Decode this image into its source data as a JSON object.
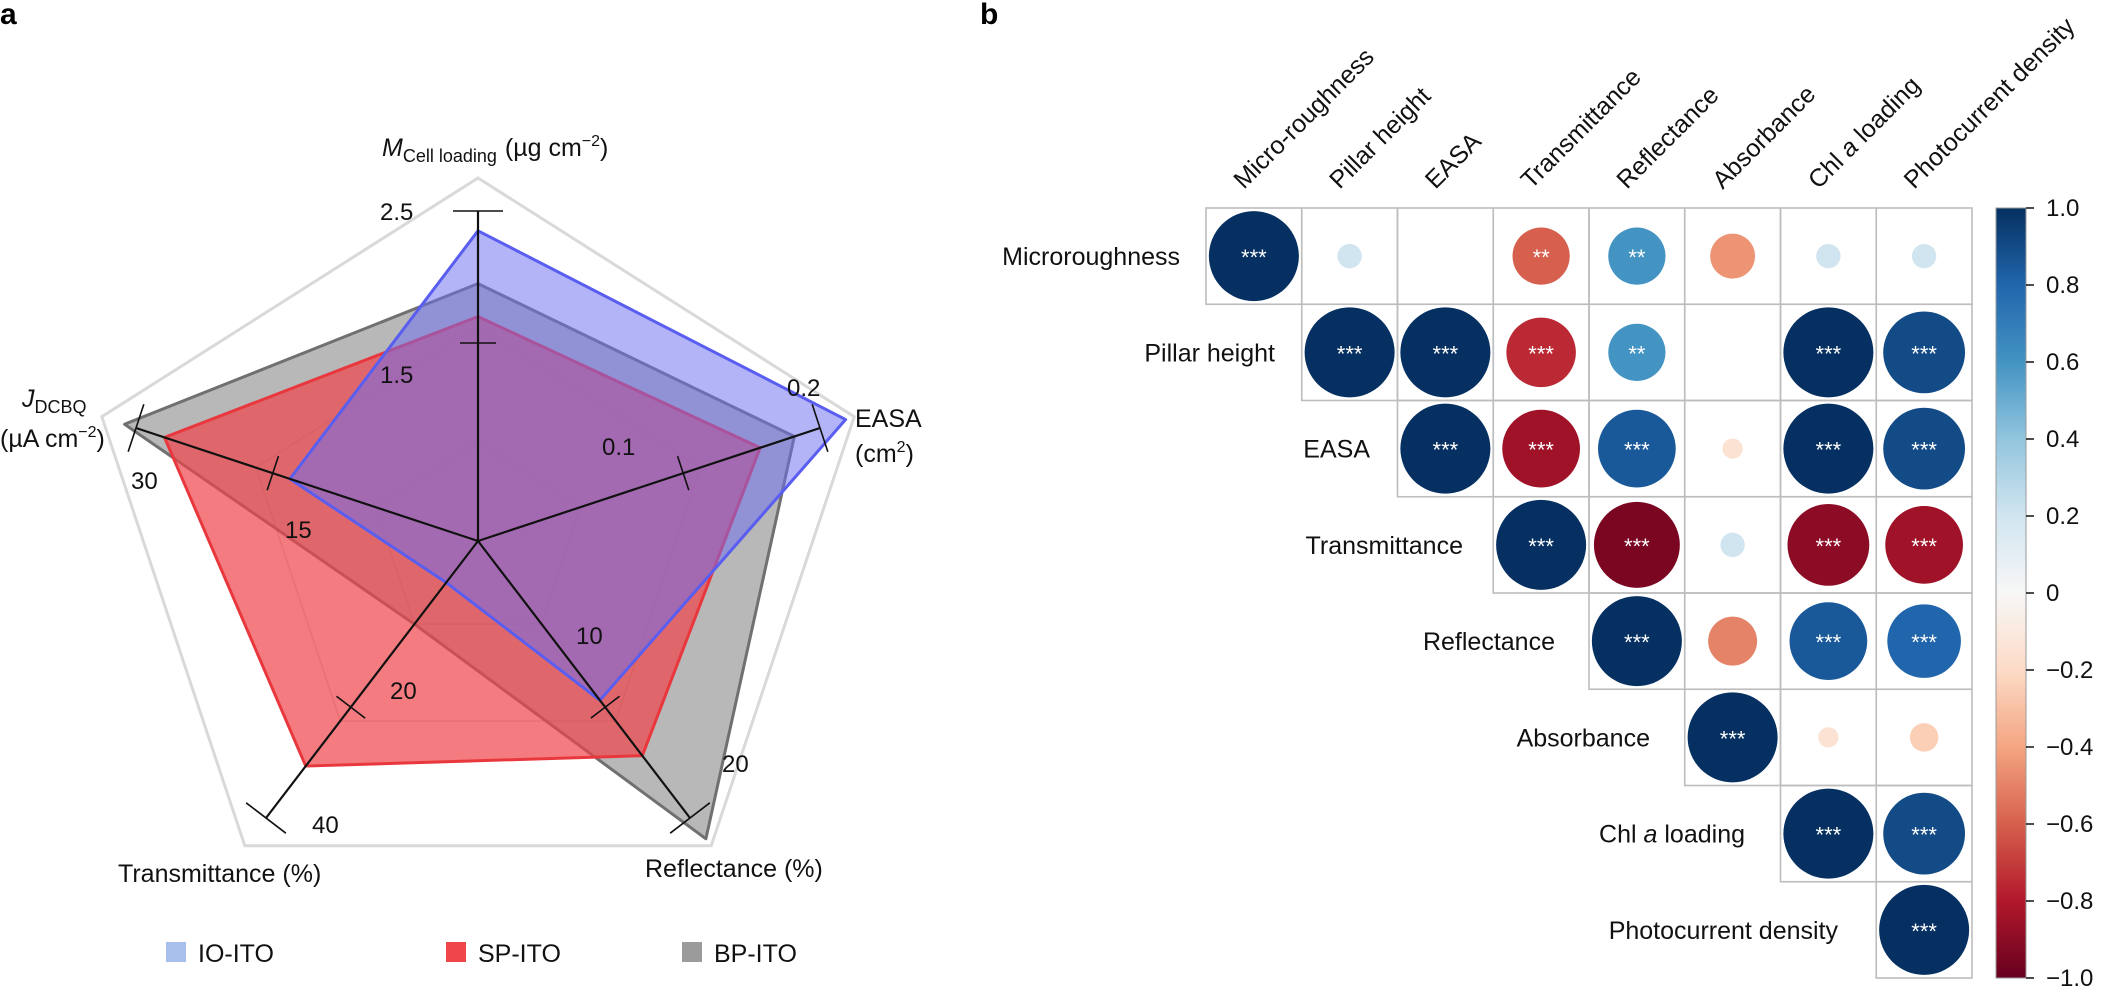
{
  "panels": {
    "a": "a",
    "b": "b"
  },
  "colors": {
    "IO-ITO": "#7f85f2",
    "SP-ITO": "#f0454a",
    "BP-ITO": "#8c8c8c",
    "grid": "#d9d9d9"
  },
  "chart_data": [
    {
      "type": "radar",
      "axes": [
        {
          "key": "cell",
          "label_main": "M",
          "label_sub": "Cell loading",
          "label_unit": "(µg cm",
          "label_exp": "−2",
          "label_close": ")",
          "ticks": [
            "2.5",
            "1.5"
          ]
        },
        {
          "key": "easa",
          "label_main": "EASA",
          "label_unit": "(cm",
          "label_exp": "2",
          "label_close": ")",
          "ticks": [
            "0.2",
            "0.1"
          ]
        },
        {
          "key": "refl",
          "label_main": "Reflectance (%)",
          "ticks": [
            "20",
            "10"
          ]
        },
        {
          "key": "trans",
          "label_main": "Transmittance (%)",
          "ticks": [
            "40",
            "20"
          ]
        },
        {
          "key": "jdcbq",
          "label_main": "J",
          "label_sub": "DCBQ",
          "label_unit": "(µA cm",
          "label_exp": "−2",
          "label_close": ")",
          "ticks": [
            "30",
            "15"
          ]
        }
      ],
      "series": [
        {
          "name": "BP-ITO",
          "values": [
            1.95,
            0.185,
            21.5,
            12,
            31
          ]
        },
        {
          "name": "SP-ITO",
          "values": [
            1.7,
            0.165,
            15.5,
            32.5,
            27.5
          ]
        },
        {
          "name": "IO-ITO",
          "values": [
            2.35,
            0.215,
            11.5,
            6,
            16.5
          ]
        }
      ],
      "legend": [
        "IO-ITO",
        "SP-ITO",
        "BP-ITO"
      ]
    },
    {
      "type": "heatmap",
      "column_labels": [
        "Micro-roughness",
        "Pillar height",
        "EASA",
        "Transmittance",
        "Reflectance",
        "Absorbance",
        "Chl a loading",
        "Photocurrent density"
      ],
      "row_labels": [
        "Microroughness",
        "Pillar height",
        "EASA",
        "Transmittance",
        "Reflectance",
        "Absorbance",
        "Chl a loading",
        "Photocurrent density"
      ],
      "cells": [
        [
          {
            "v": 1,
            "s": "***"
          },
          {
            "v": 0.2,
            "s": ""
          },
          {
            "v": 0,
            "s": ""
          },
          {
            "v": -0.6,
            "s": "**"
          },
          {
            "v": 0.6,
            "s": "**"
          },
          {
            "v": -0.45,
            "s": ""
          },
          {
            "v": 0.2,
            "s": ""
          },
          {
            "v": 0.2,
            "s": ""
          }
        ],
        [
          {
            "v": 1,
            "s": "***"
          },
          {
            "v": 1,
            "s": "***"
          },
          {
            "v": -0.75,
            "s": "***"
          },
          {
            "v": 0.6,
            "s": "**"
          },
          {
            "v": 0,
            "s": ""
          },
          {
            "v": 1,
            "s": "***"
          },
          {
            "v": 0.9,
            "s": "***"
          }
        ],
        [
          {
            "v": 1,
            "s": "***"
          },
          {
            "v": -0.85,
            "s": "***"
          },
          {
            "v": 0.85,
            "s": "***"
          },
          {
            "v": -0.15,
            "s": ""
          },
          {
            "v": 1,
            "s": "***"
          },
          {
            "v": 0.9,
            "s": "***"
          }
        ],
        [
          {
            "v": 1,
            "s": "***"
          },
          {
            "v": -0.95,
            "s": "***"
          },
          {
            "v": 0.2,
            "s": ""
          },
          {
            "v": -0.9,
            "s": "***"
          },
          {
            "v": -0.85,
            "s": "***"
          }
        ],
        [
          {
            "v": 1,
            "s": "***"
          },
          {
            "v": -0.5,
            "s": ""
          },
          {
            "v": 0.85,
            "s": "***"
          },
          {
            "v": 0.8,
            "s": "***"
          }
        ],
        [
          {
            "v": 1,
            "s": "***"
          },
          {
            "v": -0.15,
            "s": ""
          },
          {
            "v": -0.25,
            "s": ""
          }
        ],
        [
          {
            "v": 1,
            "s": "***"
          },
          {
            "v": 0.9,
            "s": "***"
          }
        ],
        [
          {
            "v": 1,
            "s": "***"
          }
        ]
      ],
      "colorbar_ticks": [
        "1.0",
        "0.8",
        "0.6",
        "0.4",
        "0.2",
        "0",
        "−0.2",
        "−0.4",
        "−0.6",
        "−0.8",
        "−1.0"
      ],
      "colorbar_range": [
        -1,
        1
      ]
    }
  ]
}
